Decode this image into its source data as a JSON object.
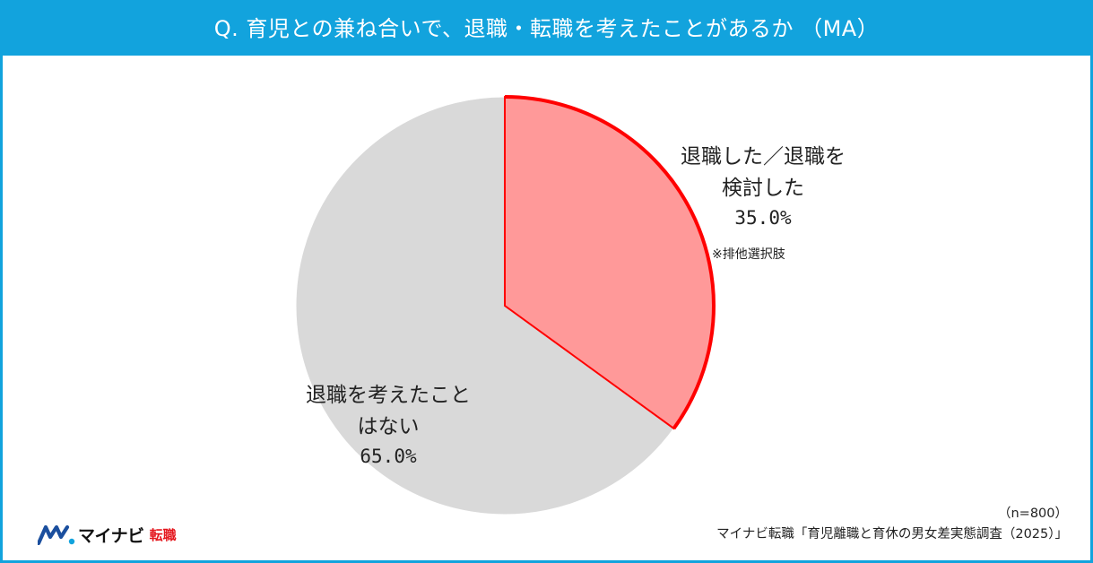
{
  "header": {
    "title": "Q. 育児との兼ね合いで、退職・転職を考えたことがあるか （MA）"
  },
  "chart_data": {
    "type": "pie",
    "title": "Q. 育児との兼ね合いで、退職・転職を考えたことがあるか （MA）",
    "slices": [
      {
        "label_line1": "退職した／退職を",
        "label_line2": "検討した",
        "value": 35.0,
        "value_label": "35.0%",
        "note": "※排他選択肢",
        "color": "#ff9999",
        "edge_color": "#ff0000"
      },
      {
        "label_line1": "退職を考えたこと",
        "label_line2": "はない",
        "value": 65.0,
        "value_label": "65.0%",
        "color": "#d9d9d9",
        "edge_color": "#ffffff"
      }
    ]
  },
  "footer": {
    "sample": "（n=800）",
    "source": "マイナビ転職「育児離職と育休の男女差実態調査（2025）」"
  },
  "logo": {
    "name": "マイナビ",
    "sub": "転職",
    "colors": {
      "mark_blue": "#1b4f9e",
      "mark_cyan": "#12a3dd",
      "sub_red": "#e4151c"
    }
  }
}
